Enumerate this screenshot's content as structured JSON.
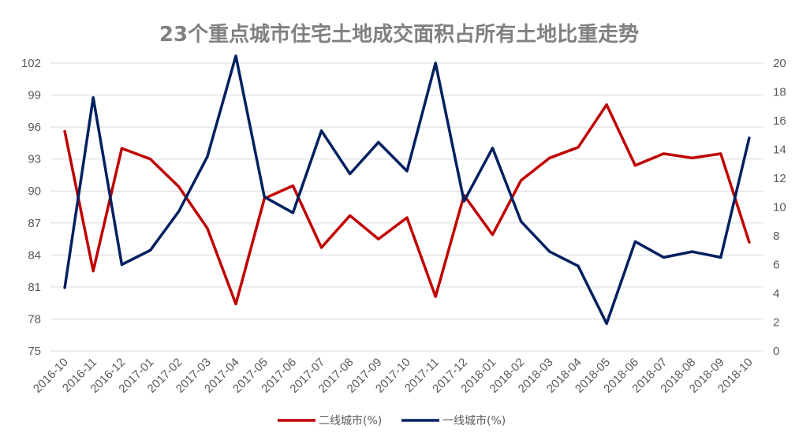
{
  "chart_data": {
    "type": "line",
    "title": "23个重点城市住宅土地成交面积占所有土地比重走势",
    "xlabel": "",
    "ylabel": "",
    "categories": [
      "2016-10",
      "2016-11",
      "2016-12",
      "2017-01",
      "2017-02",
      "2017-03",
      "2017-04",
      "2017-05",
      "2017-06",
      "2017-07",
      "2017-08",
      "2017-09",
      "2017-10",
      "2017-11",
      "2017-12",
      "2018-01",
      "2018-02",
      "2018-03",
      "2018-04",
      "2018-05",
      "2018-06",
      "2018-07",
      "2018-08",
      "2018-09",
      "2018-10"
    ],
    "left_axis": {
      "min": 75,
      "max": 102,
      "ticks": [
        75,
        78,
        81,
        84,
        87,
        90,
        93,
        96,
        99,
        102
      ]
    },
    "right_axis": {
      "min": 0,
      "max": 20,
      "ticks": [
        0,
        2,
        4,
        6,
        8,
        10,
        12,
        14,
        16,
        18,
        20
      ]
    },
    "grid": true,
    "legend_position": "bottom",
    "series": [
      {
        "name": "二线城市(%)",
        "axis": "left",
        "color": "#C00000",
        "values": [
          95.6,
          82.5,
          94.0,
          93.0,
          90.4,
          86.5,
          79.4,
          89.3,
          90.5,
          84.7,
          87.7,
          85.5,
          87.5,
          80.1,
          89.6,
          85.9,
          91.0,
          93.1,
          94.1,
          98.1,
          92.4,
          93.5,
          93.1,
          93.5,
          85.2
        ]
      },
      {
        "name": "一线城市(%)",
        "axis": "right",
        "color": "#002060",
        "values": [
          4.4,
          17.6,
          6.0,
          7.0,
          9.7,
          13.5,
          20.5,
          10.7,
          9.6,
          15.3,
          12.3,
          14.5,
          12.5,
          20.0,
          10.4,
          14.1,
          9.0,
          6.9,
          5.9,
          1.9,
          7.6,
          6.5,
          6.9,
          6.5,
          14.8
        ]
      }
    ]
  }
}
